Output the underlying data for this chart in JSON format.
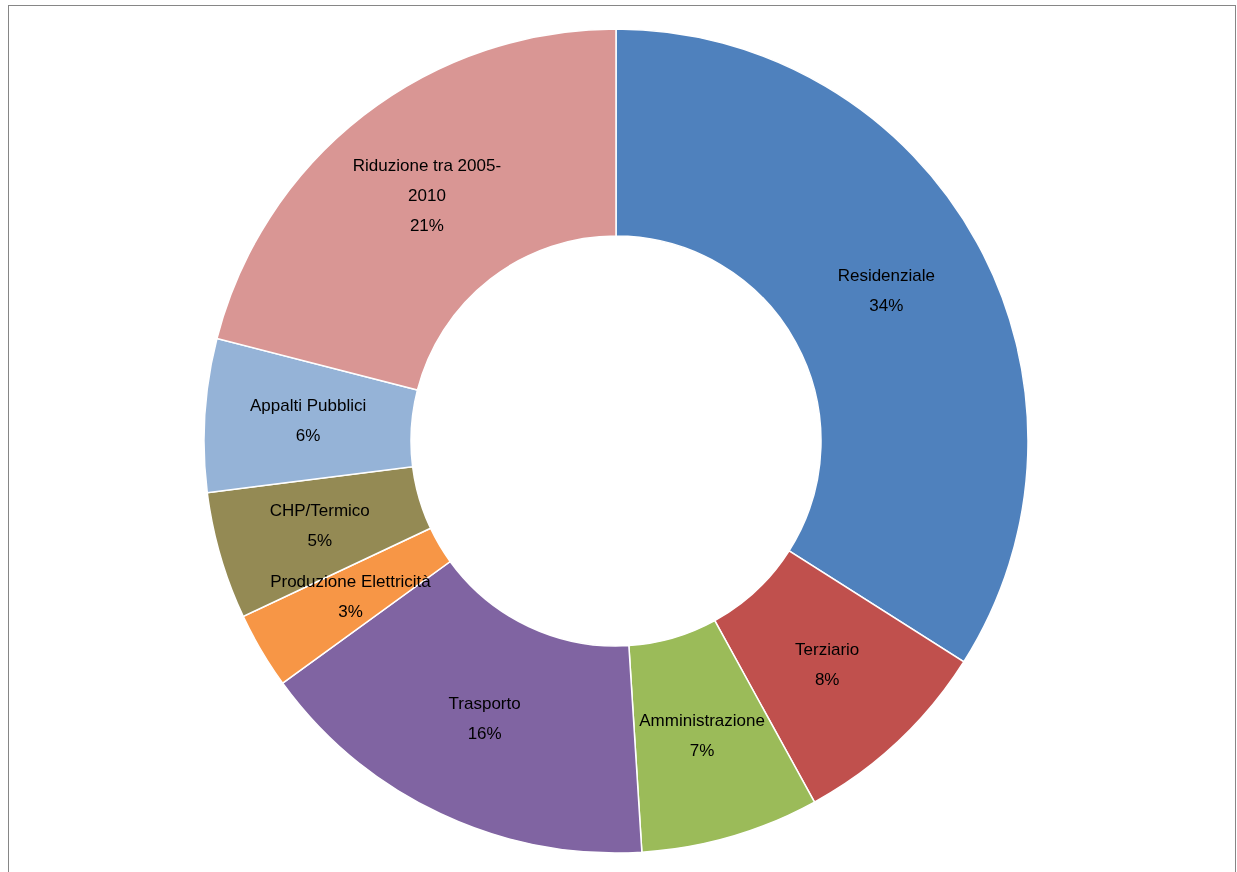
{
  "chart_data": {
    "type": "donut",
    "categories": [
      "Residenziale",
      "Terziario",
      "Amministrazione",
      "Trasporto",
      "Produzione Elettricità",
      "CHP/Termico",
      "Appalti Pubblici",
      "Riduzione tra 2005-2010"
    ],
    "values": [
      34,
      8,
      7,
      16,
      3,
      5,
      6,
      21
    ],
    "colors": [
      "#4f81bd",
      "#c0504d",
      "#9bbb59",
      "#8064a2",
      "#f79646",
      "#948a54",
      "#95b3d7",
      "#d99694"
    ],
    "value_labels": [
      "34%",
      "8%",
      "7%",
      "16%",
      "3%",
      "5%",
      "6%",
      "21%"
    ]
  }
}
